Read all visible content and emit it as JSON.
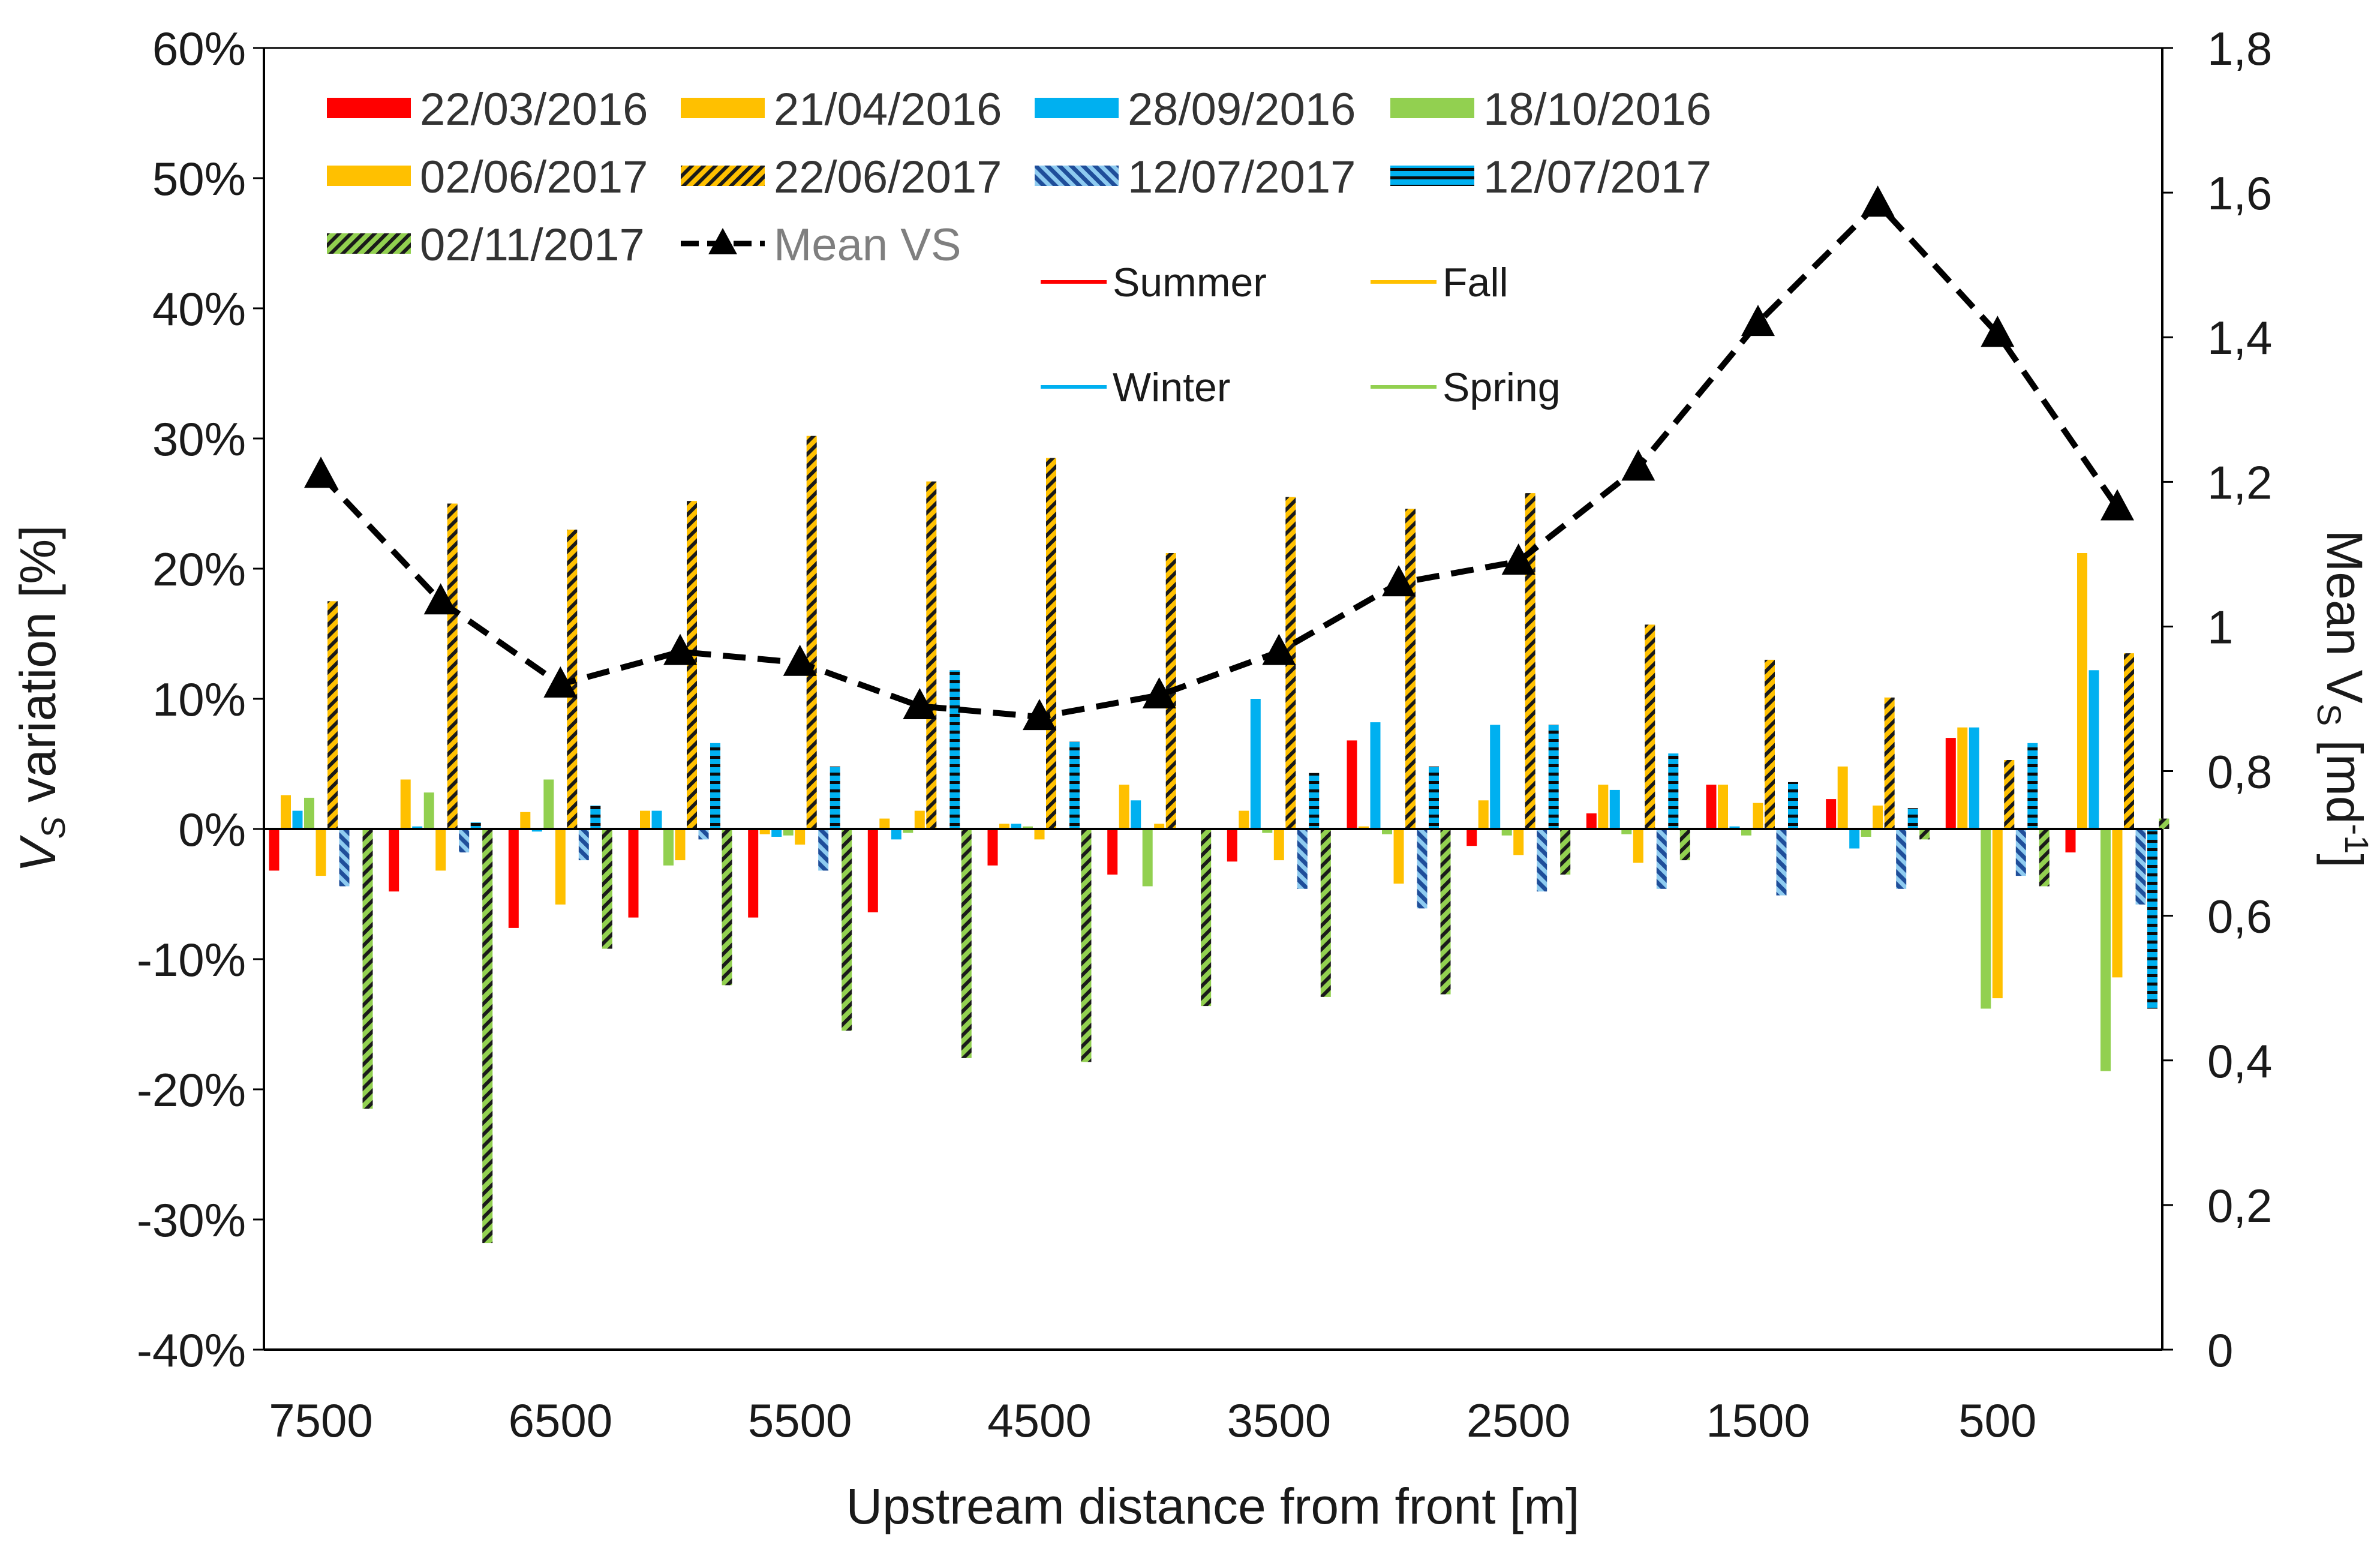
{
  "chart_data": {
    "type": "bar",
    "xlabel": "Upstream distance from front [m]",
    "ylabel_left": {
      "main": "V",
      "sub": "S",
      "rest": " variation [%]"
    },
    "ylabel_right": {
      "main": "Mean V",
      "sub": "S",
      "rest": " [md",
      "sup": "-1",
      "end": "]"
    },
    "y_left": {
      "min": -40,
      "max": 60,
      "ticks": [
        "60%",
        "50%",
        "40%",
        "30%",
        "20%",
        "10%",
        "0%",
        "-10%",
        "-20%",
        "-30%",
        "-40%"
      ]
    },
    "y_right": {
      "min": 0,
      "max": 1.8,
      "ticks": [
        "1,8",
        "1,6",
        "1,4",
        "1,2",
        "1",
        "0,8",
        "0,6",
        "0,4",
        "0,2",
        "0"
      ]
    },
    "x_tick_labels": [
      "7500",
      "6500",
      "5500",
      "4500",
      "3500",
      "2500",
      "1500",
      "500"
    ],
    "categories": [
      7500,
      7000,
      6500,
      6000,
      5500,
      5000,
      4500,
      4000,
      3500,
      3000,
      2500,
      2000,
      1500,
      1000,
      500,
      0
    ],
    "series": [
      {
        "name": "22/03/2016",
        "color": "#ff0000",
        "pattern": "solid",
        "values": [
          -3.2,
          -4.8,
          -7.6,
          -6.8,
          -6.8,
          -6.4,
          -2.8,
          -3.5,
          -2.5,
          6.8,
          -1.3,
          1.2,
          3.4,
          2.3,
          7.0,
          -1.8
        ]
      },
      {
        "name": "21/04/2016",
        "color": "#ffc000",
        "pattern": "solid",
        "values": [
          2.6,
          3.8,
          1.3,
          1.4,
          -0.4,
          0.8,
          0.4,
          3.4,
          1.4,
          0.2,
          2.2,
          3.4,
          3.4,
          4.8,
          7.8,
          21.2
        ]
      },
      {
        "name": "28/09/2016",
        "color": "#00b0f0",
        "pattern": "solid",
        "values": [
          1.4,
          0.2,
          -0.2,
          1.4,
          -0.6,
          -0.8,
          0.4,
          2.2,
          10.0,
          8.2,
          8.0,
          3.0,
          0.2,
          -1.5,
          7.8,
          12.2
        ]
      },
      {
        "name": "18/10/2016",
        "color": "#92d050",
        "pattern": "solid",
        "values": [
          2.4,
          2.8,
          3.8,
          -2.8,
          -0.5,
          -0.3,
          0.2,
          -4.4,
          -0.3,
          -0.4,
          -0.5,
          -0.4,
          -0.5,
          -0.6,
          -13.8,
          -18.6
        ]
      },
      {
        "name": "02/06/2017",
        "color": "#ffc000",
        "pattern": "solid",
        "values": [
          -3.6,
          -3.2,
          -5.8,
          -2.4,
          -1.2,
          1.4,
          -0.8,
          0.4,
          -2.4,
          -4.2,
          -2.0,
          -2.6,
          2.0,
          1.8,
          -13.0,
          -11.4
        ]
      },
      {
        "name": "22/06/2017",
        "color": "#ffc000",
        "pattern": "hatch-yellow",
        "values": [
          17.5,
          25.0,
          23.0,
          25.2,
          30.2,
          26.7,
          28.5,
          21.2,
          25.5,
          24.6,
          25.8,
          15.7,
          13.0,
          10.1,
          5.3,
          13.5
        ]
      },
      {
        "name": "12/07/2017",
        "color": "#1f6fbf",
        "pattern": "hatch-blue",
        "values": [
          -4.4,
          -1.8,
          -2.4,
          -0.8,
          -3.2,
          0.0,
          0.0,
          0.0,
          -4.6,
          -6.1,
          -4.8,
          -4.6,
          -5.1,
          -4.6,
          -3.6,
          -5.8
        ]
      },
      {
        "name": "12/07/2017",
        "color": "#00b0f0",
        "pattern": "stripe-blue",
        "values": [
          0.0,
          0.5,
          1.8,
          6.6,
          4.8,
          12.2,
          6.7,
          0.0,
          4.3,
          4.8,
          8.0,
          5.8,
          3.6,
          1.6,
          6.6,
          -13.8
        ]
      },
      {
        "name": "02/11/2017",
        "color": "#92d050",
        "pattern": "hatch-green",
        "values": [
          -21.5,
          -31.8,
          -9.2,
          -12.0,
          -15.5,
          -17.6,
          -17.9,
          -13.6,
          -12.9,
          -12.7,
          -3.5,
          -2.4,
          0.0,
          -0.8,
          -4.4,
          0.8
        ]
      }
    ],
    "line_series": {
      "name": "Mean VS",
      "color": "#000000",
      "axis": "right",
      "x": [
        7500,
        7000,
        6500,
        6000,
        5500,
        5000,
        4500,
        4000,
        3500,
        3000,
        2500,
        2000,
        1500,
        1000,
        500,
        0
      ],
      "values": [
        1.21,
        1.035,
        0.92,
        0.965,
        0.95,
        0.89,
        0.875,
        0.905,
        0.965,
        1.06,
        1.09,
        1.22,
        1.42,
        1.585,
        1.405,
        1.165
      ]
    },
    "season_legend": [
      {
        "name": "Summer",
        "color": "#ff0000"
      },
      {
        "name": "Fall",
        "color": "#ffc000"
      },
      {
        "name": "Winter",
        "color": "#00b0f0"
      },
      {
        "name": "Spring",
        "color": "#92d050"
      }
    ]
  }
}
